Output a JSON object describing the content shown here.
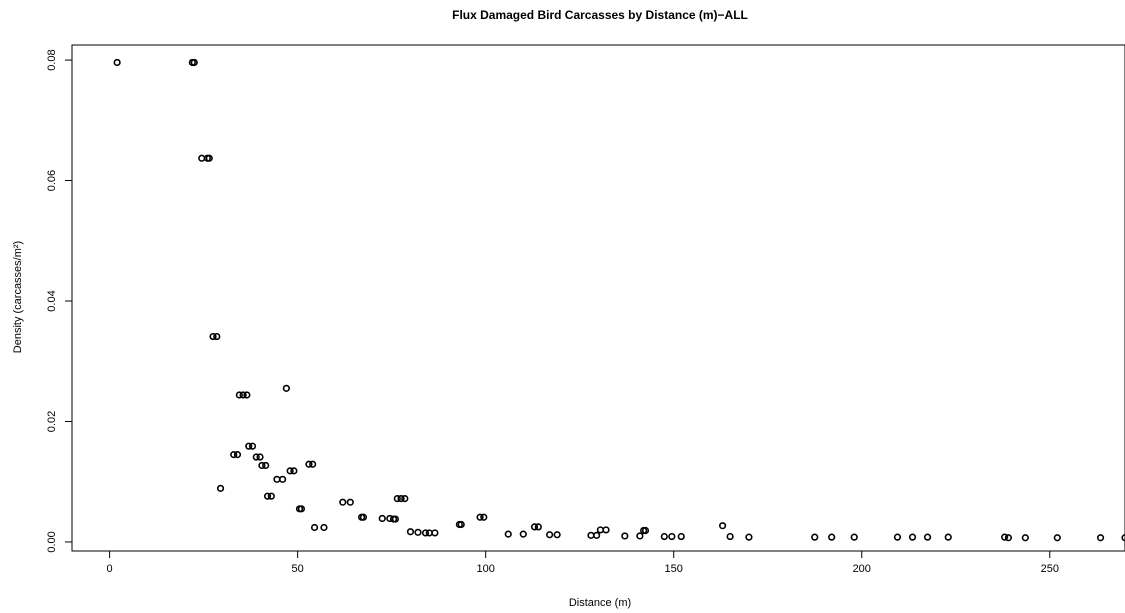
{
  "chart_data": {
    "type": "scatter",
    "title": "Flux Damaged Bird Carcasses by Distance (m)−ALL",
    "xlabel": "Distance (m)",
    "ylabel": "Density (carcasses/m²)",
    "xlim": [
      -10,
      270
    ],
    "ylim": [
      -0.0015,
      0.0825
    ],
    "xticks": [
      0,
      50,
      100,
      150,
      200,
      250
    ],
    "xtick_labels": [
      "0",
      "50",
      "100",
      "150",
      "200",
      "250"
    ],
    "yticks": [
      0,
      0.02,
      0.04,
      0.06,
      0.08
    ],
    "ytick_labels": [
      "0.00",
      "0.02",
      "0.04",
      "0.06",
      "0.08"
    ],
    "grid": false,
    "series": [
      {
        "marker": "open-circle",
        "color": "#000000",
        "points": [
          [
            2,
            0.0796
          ],
          [
            22,
            0.0796
          ],
          [
            22.5,
            0.0796
          ],
          [
            24.5,
            0.0637
          ],
          [
            26,
            0.0637
          ],
          [
            26.5,
            0.0637
          ],
          [
            27.5,
            0.0341
          ],
          [
            28.5,
            0.0341
          ],
          [
            29.5,
            0.0089
          ],
          [
            33,
            0.0145
          ],
          [
            34,
            0.0145
          ],
          [
            34.5,
            0.0244
          ],
          [
            35.5,
            0.0244
          ],
          [
            36.5,
            0.0244
          ],
          [
            37,
            0.0159
          ],
          [
            38,
            0.0159
          ],
          [
            39,
            0.0141
          ],
          [
            40,
            0.0141
          ],
          [
            40.5,
            0.0127
          ],
          [
            41.5,
            0.0127
          ],
          [
            42,
            0.0076
          ],
          [
            43,
            0.0076
          ],
          [
            44.5,
            0.0104
          ],
          [
            46,
            0.0104
          ],
          [
            47,
            0.0255
          ],
          [
            48,
            0.0118
          ],
          [
            49,
            0.0118
          ],
          [
            50.5,
            0.0055
          ],
          [
            51,
            0.0055
          ],
          [
            53,
            0.0129
          ],
          [
            54,
            0.0129
          ],
          [
            54.5,
            0.0024
          ],
          [
            57,
            0.0024
          ],
          [
            62,
            0.0066
          ],
          [
            64,
            0.0066
          ],
          [
            67,
            0.0041
          ],
          [
            67.5,
            0.0041
          ],
          [
            72.5,
            0.0039
          ],
          [
            74.5,
            0.0039
          ],
          [
            75.5,
            0.0038
          ],
          [
            76,
            0.0038
          ],
          [
            76.5,
            0.0072
          ],
          [
            77.5,
            0.0072
          ],
          [
            78.5,
            0.0072
          ],
          [
            80,
            0.0017
          ],
          [
            82,
            0.0016
          ],
          [
            84,
            0.0015
          ],
          [
            85,
            0.0015
          ],
          [
            86.5,
            0.0015
          ],
          [
            93,
            0.0029
          ],
          [
            93.5,
            0.0029
          ],
          [
            98.5,
            0.0041
          ],
          [
            99.5,
            0.0041
          ],
          [
            106,
            0.0013
          ],
          [
            110,
            0.0013
          ],
          [
            113,
            0.0025
          ],
          [
            114,
            0.0025
          ],
          [
            117,
            0.0012
          ],
          [
            119,
            0.0012
          ],
          [
            128,
            0.0011
          ],
          [
            129.5,
            0.0011
          ],
          [
            130.5,
            0.002
          ],
          [
            132,
            0.002
          ],
          [
            137,
            0.001
          ],
          [
            141,
            0.001
          ],
          [
            142,
            0.0019
          ],
          [
            142.5,
            0.0019
          ],
          [
            147.5,
            0.0009
          ],
          [
            149.5,
            0.0009
          ],
          [
            152,
            0.0009
          ],
          [
            163,
            0.0027
          ],
          [
            165,
            0.0009
          ],
          [
            170,
            0.0008
          ],
          [
            187.5,
            0.0008
          ],
          [
            192,
            0.0008
          ],
          [
            198,
            0.0008
          ],
          [
            209.5,
            0.0008
          ],
          [
            213.5,
            0.0008
          ],
          [
            217.5,
            0.0008
          ],
          [
            223,
            0.0008
          ],
          [
            238,
            0.0008
          ],
          [
            239,
            0.0007
          ],
          [
            243.5,
            0.0007
          ],
          [
            252,
            0.0007
          ],
          [
            263.5,
            0.0007
          ],
          [
            270,
            0.0007
          ]
        ]
      }
    ]
  }
}
